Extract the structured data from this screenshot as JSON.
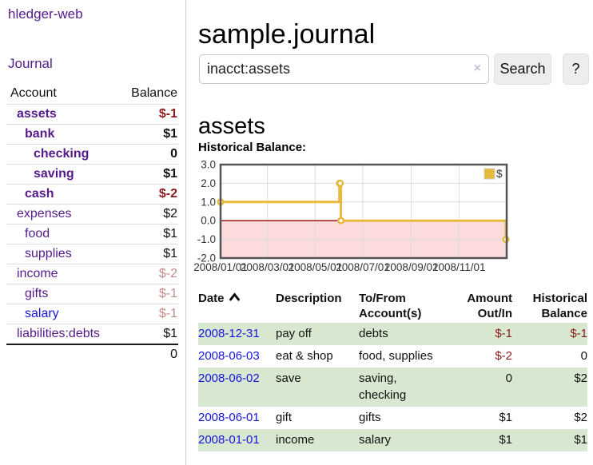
{
  "colors": {
    "link_purple": "#551a8b",
    "link_blue": "#1414dd",
    "negative_dark": "#8b1a1a",
    "negative_light": "#c48b8b",
    "row_green": "#d8e8d0",
    "chart_line": "#e8ba3c",
    "chart_negative_fill": "#fbdbdb",
    "chart_zero_line": "#990000",
    "chart_grid": "#dcdcdc",
    "chart_border": "#545454"
  },
  "sidebar": {
    "brand": "hledger-web",
    "journal_label": "Journal",
    "accounts": {
      "header_account": "Account",
      "header_balance": "Balance",
      "rows": [
        {
          "name": "assets",
          "level": 1,
          "bold": true,
          "color": "purple",
          "balance": "$-1",
          "balance_color": "negative_dark"
        },
        {
          "name": "bank",
          "level": 2,
          "bold": true,
          "color": "purple",
          "balance": "$1",
          "balance_color": "black"
        },
        {
          "name": "checking",
          "level": 3,
          "bold": true,
          "color": "purple",
          "balance": "0",
          "balance_color": "black"
        },
        {
          "name": "saving",
          "level": 3,
          "bold": true,
          "color": "purple",
          "balance": "$1",
          "balance_color": "black"
        },
        {
          "name": "cash",
          "level": 2,
          "bold": true,
          "color": "purple",
          "balance": "$-2",
          "balance_color": "negative_dark"
        },
        {
          "name": "expenses",
          "level": 1,
          "bold": false,
          "color": "purple",
          "balance": "$2",
          "balance_color": "black"
        },
        {
          "name": "food",
          "level": 2,
          "bold": false,
          "color": "purple",
          "balance": "$1",
          "balance_color": "black"
        },
        {
          "name": "supplies",
          "level": 2,
          "bold": false,
          "color": "purple",
          "balance": "$1",
          "balance_color": "black"
        },
        {
          "name": "income",
          "level": 1,
          "bold": false,
          "color": "purple",
          "balance": "$-2",
          "balance_color": "negative_light"
        },
        {
          "name": "gifts",
          "level": 2,
          "bold": false,
          "color": "purple",
          "balance": "$-1",
          "balance_color": "negative_light"
        },
        {
          "name": "salary",
          "level": 2,
          "bold": false,
          "color": "blue",
          "balance": "$-1",
          "balance_color": "negative_light"
        },
        {
          "name": "liabilities:debts",
          "level": 1,
          "bold": false,
          "color": "purple",
          "balance": "$1",
          "balance_color": "black"
        }
      ],
      "total": "0"
    }
  },
  "main": {
    "title": "sample.journal",
    "search": {
      "value": "inacct:assets",
      "clear_icon": "×",
      "button_label": "Search",
      "help_label": "?"
    },
    "account_heading": "assets",
    "chart_label": "Historical Balance:"
  },
  "chart_data": {
    "type": "line",
    "style": "steps",
    "title": "Historical Balance",
    "series": [
      {
        "name": "$",
        "points": [
          [
            "2008-01-01",
            1
          ],
          [
            "2008-06-01",
            2
          ],
          [
            "2008-06-02",
            2
          ],
          [
            "2008-06-03",
            0
          ],
          [
            "2008-12-31",
            -1
          ]
        ]
      }
    ],
    "xlim": [
      "2008-01-01",
      "2009-01-01"
    ],
    "ylim": [
      -2,
      3
    ],
    "yticks": [
      3,
      2,
      1,
      0,
      -1,
      -2
    ],
    "ytick_labels": [
      "3.0",
      "2.0",
      "1.0",
      "0.0",
      "-1.0",
      "-2.0"
    ],
    "xticks": [
      "2008-01-01",
      "2008-03-01",
      "2008-05-01",
      "2008-07-01",
      "2008-09-01",
      "2008-11-01"
    ],
    "xtick_labels": [
      "2008/01/01",
      "2008/03/01",
      "2008/05/01",
      "2008/07/01",
      "2008/09/01",
      "2008/11/01"
    ],
    "legend": [
      "$"
    ],
    "legend_position": "top-right",
    "grid": true,
    "negative_region_shaded": true
  },
  "register": {
    "headers": {
      "date": "Date",
      "description": "Description",
      "accounts": "To/From Account(s)",
      "amount": "Amount Out/In",
      "balance": "Historical Balance"
    },
    "sort_icon": "chevron-up",
    "rows": [
      {
        "date": "2008-12-31",
        "description": "pay off",
        "accounts": "debts",
        "amount": "$-1",
        "amount_negative": true,
        "balance": "$-1",
        "balance_negative": true,
        "shaded": true
      },
      {
        "date": "2008-06-03",
        "description": "eat & shop",
        "accounts": "food, supplies",
        "amount": "$-2",
        "amount_negative": true,
        "balance": "0",
        "balance_negative": false,
        "shaded": false
      },
      {
        "date": "2008-06-02",
        "description": "save",
        "accounts": "saving, checking",
        "amount": "0",
        "amount_negative": false,
        "balance": "$2",
        "balance_negative": false,
        "shaded": true
      },
      {
        "date": "2008-06-01",
        "description": "gift",
        "accounts": "gifts",
        "amount": "$1",
        "amount_negative": false,
        "balance": "$2",
        "balance_negative": false,
        "shaded": false
      },
      {
        "date": "2008-01-01",
        "description": "income",
        "accounts": "salary",
        "amount": "$1",
        "amount_negative": false,
        "balance": "$1",
        "balance_negative": false,
        "shaded": true
      }
    ]
  }
}
